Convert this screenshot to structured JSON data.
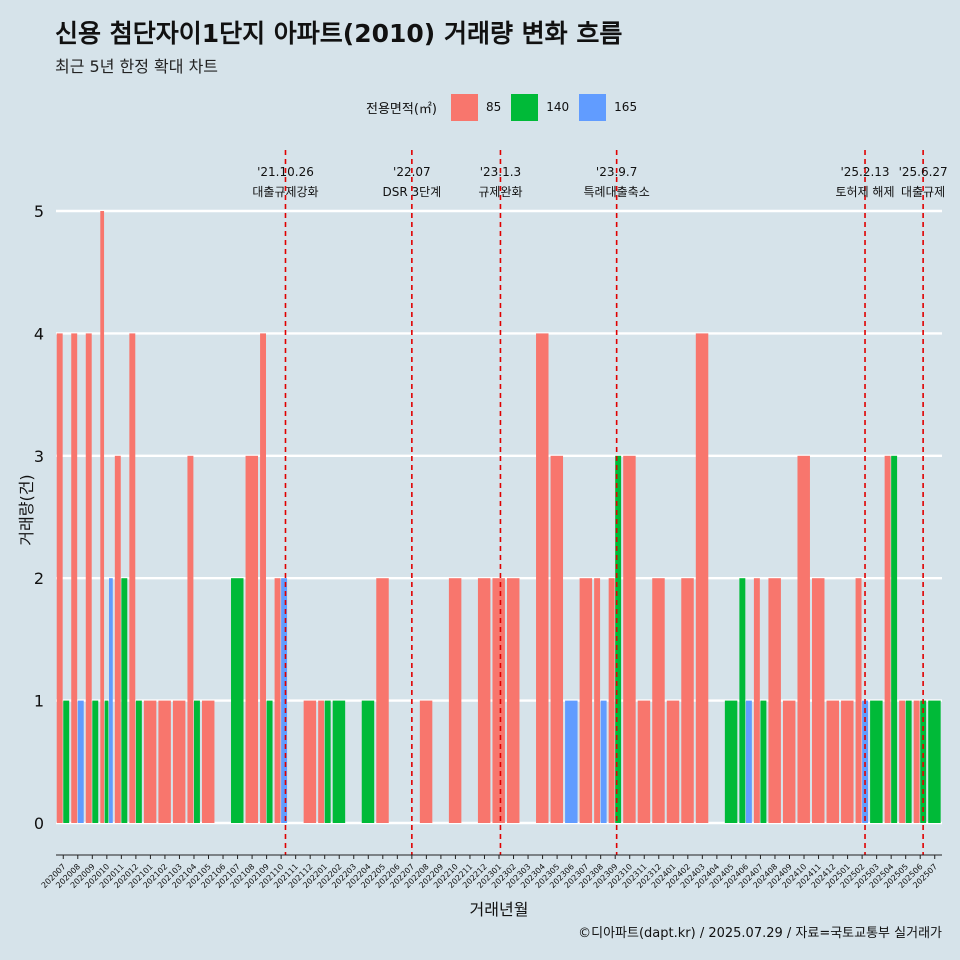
{
  "title": "신용 첨단자이1단지 아파트(2010) 거래량 변화 흐름",
  "subtitle": "최근 5년 한정 확대 차트",
  "legend": {
    "title": "전용면적(㎡)",
    "items": [
      {
        "name": "85",
        "color": "#F8766D"
      },
      {
        "name": "140",
        "color": "#00BA38"
      },
      {
        "name": "165",
        "color": "#619CFF"
      }
    ]
  },
  "footer": "©디아파트(dapt.kr) / 2025.07.29 / 자료=국토교통부 실거래가",
  "chart_data": {
    "type": "bar",
    "xlabel": "거래년월",
    "ylabel": "거래량(건)",
    "ylim": [
      0,
      5
    ],
    "yticks": [
      0,
      1,
      2,
      3,
      4,
      5
    ],
    "grid": true,
    "months": [
      "202007",
      "202008",
      "202009",
      "202010",
      "202011",
      "202012",
      "202101",
      "202102",
      "202103",
      "202104",
      "202105",
      "202106",
      "202107",
      "202108",
      "202109",
      "202110",
      "202111",
      "202112",
      "202201",
      "202202",
      "202203",
      "202204",
      "202205",
      "202206",
      "202207",
      "202208",
      "202209",
      "202210",
      "202211",
      "202212",
      "202301",
      "202302",
      "202303",
      "202304",
      "202305",
      "202306",
      "202307",
      "202308",
      "202309",
      "202310",
      "202311",
      "202312",
      "202401",
      "202402",
      "202403",
      "202404",
      "202405",
      "202406",
      "202407",
      "202408",
      "202409",
      "202410",
      "202411",
      "202412",
      "202501",
      "202502",
      "202503",
      "202504",
      "202505",
      "202506",
      "202507"
    ],
    "series": [
      {
        "name": "85",
        "color": "#F8766D",
        "values": [
          4,
          4,
          4,
          5,
          3,
          4,
          1,
          1,
          1,
          3,
          1,
          0,
          0,
          3,
          4,
          2,
          0,
          1,
          1,
          0,
          0,
          0,
          2,
          0,
          0,
          1,
          0,
          2,
          0,
          2,
          2,
          2,
          0,
          4,
          3,
          0,
          2,
          2,
          2,
          3,
          1,
          2,
          1,
          2,
          4,
          0,
          0,
          0,
          2,
          2,
          1,
          3,
          2,
          1,
          1,
          2,
          0,
          3,
          1,
          1,
          0
        ]
      },
      {
        "name": "140",
        "color": "#00BA38",
        "values": [
          1,
          0,
          1,
          1,
          2,
          1,
          0,
          0,
          0,
          1,
          0,
          0,
          2,
          0,
          1,
          0,
          0,
          0,
          1,
          1,
          0,
          1,
          0,
          0,
          0,
          0,
          0,
          0,
          0,
          0,
          0,
          0,
          0,
          0,
          0,
          0,
          0,
          0,
          3,
          0,
          0,
          0,
          0,
          0,
          0,
          0,
          1,
          2,
          1,
          0,
          0,
          0,
          0,
          0,
          0,
          0,
          1,
          3,
          1,
          1,
          1
        ]
      },
      {
        "name": "165",
        "color": "#619CFF",
        "values": [
          0,
          1,
          0,
          2,
          0,
          0,
          0,
          0,
          0,
          0,
          0,
          0,
          0,
          0,
          0,
          2,
          0,
          0,
          0,
          0,
          0,
          0,
          0,
          0,
          0,
          0,
          0,
          0,
          0,
          0,
          0,
          0,
          0,
          0,
          0,
          1,
          0,
          1,
          0,
          0,
          0,
          0,
          0,
          0,
          0,
          0,
          0,
          1,
          0,
          0,
          0,
          0,
          0,
          0,
          0,
          1,
          0,
          0,
          0,
          0,
          0
        ]
      }
    ],
    "annotations": [
      {
        "date": "'21.10.26",
        "label": "대출규제강화",
        "month_index": 15.8
      },
      {
        "date": "'22.07",
        "label": "DSR 3단계",
        "month_index": 24.5
      },
      {
        "date": "'23.1.3",
        "label": "규제완화",
        "month_index": 30.6
      },
      {
        "date": "'23.9.7",
        "label": "특례대출축소",
        "month_index": 38.6
      },
      {
        "date": "'25.2.13",
        "label": "토허제 해제",
        "month_index": 55.7
      },
      {
        "date": "'25.6.27",
        "label": "대출규제",
        "month_index": 59.7
      }
    ]
  }
}
